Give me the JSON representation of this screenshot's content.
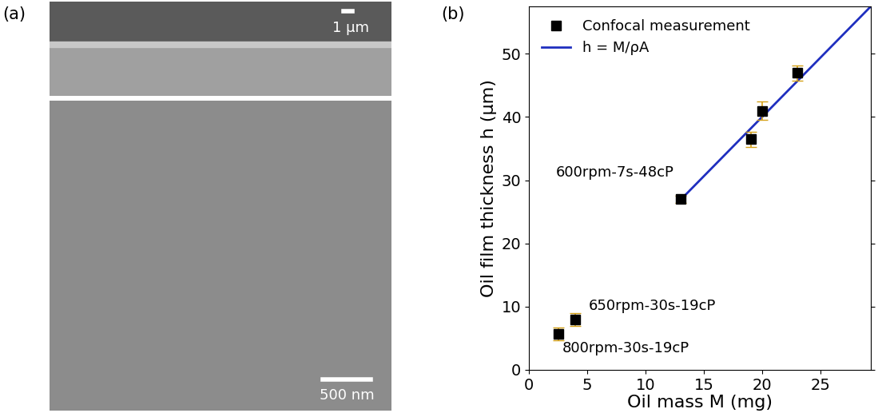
{
  "panel_labels": [
    "(a)",
    "(b)"
  ],
  "images": {
    "top_scale_bar": "1 μm",
    "bottom_scale_bar": "500 nm"
  },
  "chart_data": {
    "type": "scatter",
    "x_label": "Oil mass M (mg)",
    "y_label": "Oil film thickness h (μm)",
    "xlim": [
      0,
      29.3
    ],
    "ylim": [
      0,
      57.5
    ],
    "xticks": [
      0,
      5,
      10,
      15,
      20,
      25
    ],
    "yticks": [
      0,
      10,
      20,
      30,
      40,
      50
    ],
    "legend": "upper left",
    "series": [
      {
        "name": "Confocal measurement",
        "type": "scatter",
        "color": "#000000",
        "marker": "square",
        "x": [
          2.5,
          4,
          13,
          19,
          20,
          23
        ],
        "values": [
          5.7,
          8.0,
          27.0,
          36.5,
          41.0,
          47.0
        ],
        "errors": [
          1.0,
          1.0,
          0.6,
          1.2,
          1.5,
          1.2
        ]
      },
      {
        "name": "h = M/ρA",
        "type": "line",
        "color": "#1f2fbf",
        "line_style": "solid",
        "x": [
          13,
          29.3
        ],
        "values": [
          26.9,
          57.5
        ]
      }
    ],
    "annotations": [
      {
        "text": "600rpm-7s-48cP",
        "x": 13,
        "y": 27.0
      },
      {
        "text": "650rpm-30s-19cP",
        "x": 4,
        "y": 8.0
      },
      {
        "text": "800rpm-30s-19cP",
        "x": 2.5,
        "y": 5.7
      }
    ]
  }
}
